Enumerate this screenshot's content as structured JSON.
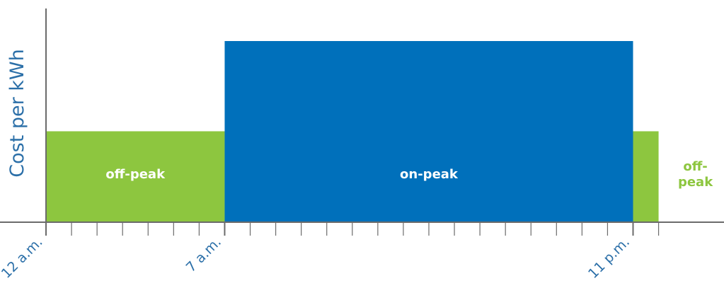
{
  "chart_data": {
    "type": "bar",
    "ylabel": "Cost per kWh",
    "xlabel": "",
    "x_range_hours": [
      0,
      24
    ],
    "y_range": [
      0,
      1
    ],
    "grid": false,
    "legend": "none",
    "tick_labels": [
      {
        "hour": 0,
        "label": "12 a.m."
      },
      {
        "hour": 7,
        "label": "7 a.m."
      },
      {
        "hour": 23,
        "label": "11 p.m."
      }
    ],
    "series": [
      {
        "start": 0,
        "end": 7,
        "value": 0.5,
        "label_lines": [
          "off-peak"
        ],
        "label_color": "#ffffff",
        "label_position": "inside",
        "color": "#8dc63f"
      },
      {
        "start": 7,
        "end": 23,
        "value": 1.0,
        "label_lines": [
          "on-peak"
        ],
        "label_color": "#ffffff",
        "label_position": "inside",
        "color": "#0070bb"
      },
      {
        "start": 23,
        "end": 24,
        "value": 0.5,
        "label_lines": [
          "off-",
          "peak"
        ],
        "label_color": "#8dc63f",
        "label_position": "outside-right",
        "color": "#8dc63f"
      }
    ],
    "colors": {
      "axis": "#6b6b6b",
      "ylabel": "#2b6fa8",
      "tick_label": "#2b6fa8"
    }
  }
}
